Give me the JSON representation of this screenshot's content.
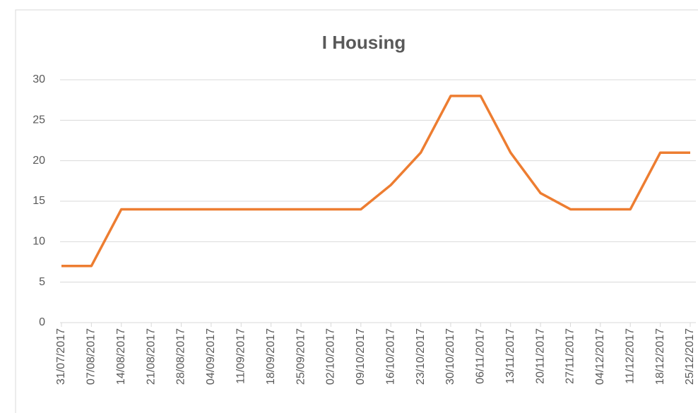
{
  "chart_data": {
    "type": "line",
    "title": "I Housing",
    "categories": [
      "31/07/2017",
      "07/08/2017",
      "14/08/2017",
      "21/08/2017",
      "28/08/2017",
      "04/09/2017",
      "11/09/2017",
      "18/09/2017",
      "25/09/2017",
      "02/10/2017",
      "09/10/2017",
      "16/10/2017",
      "23/10/2017",
      "30/10/2017",
      "06/11/2017",
      "13/11/2017",
      "20/11/2017",
      "27/11/2017",
      "04/12/2017",
      "11/12/2017",
      "18/12/2017",
      "25/12/2017"
    ],
    "series": [
      {
        "name": "I Housing",
        "color": "#ed7d31",
        "values": [
          7,
          7,
          14,
          14,
          14,
          14,
          14,
          14,
          14,
          14,
          14,
          17,
          21,
          28,
          28,
          21,
          16,
          14,
          14,
          14,
          21,
          21
        ]
      }
    ],
    "ylim": [
      0,
      30
    ],
    "yticks": [
      0,
      5,
      10,
      15,
      20,
      25,
      30
    ],
    "grid": true
  }
}
